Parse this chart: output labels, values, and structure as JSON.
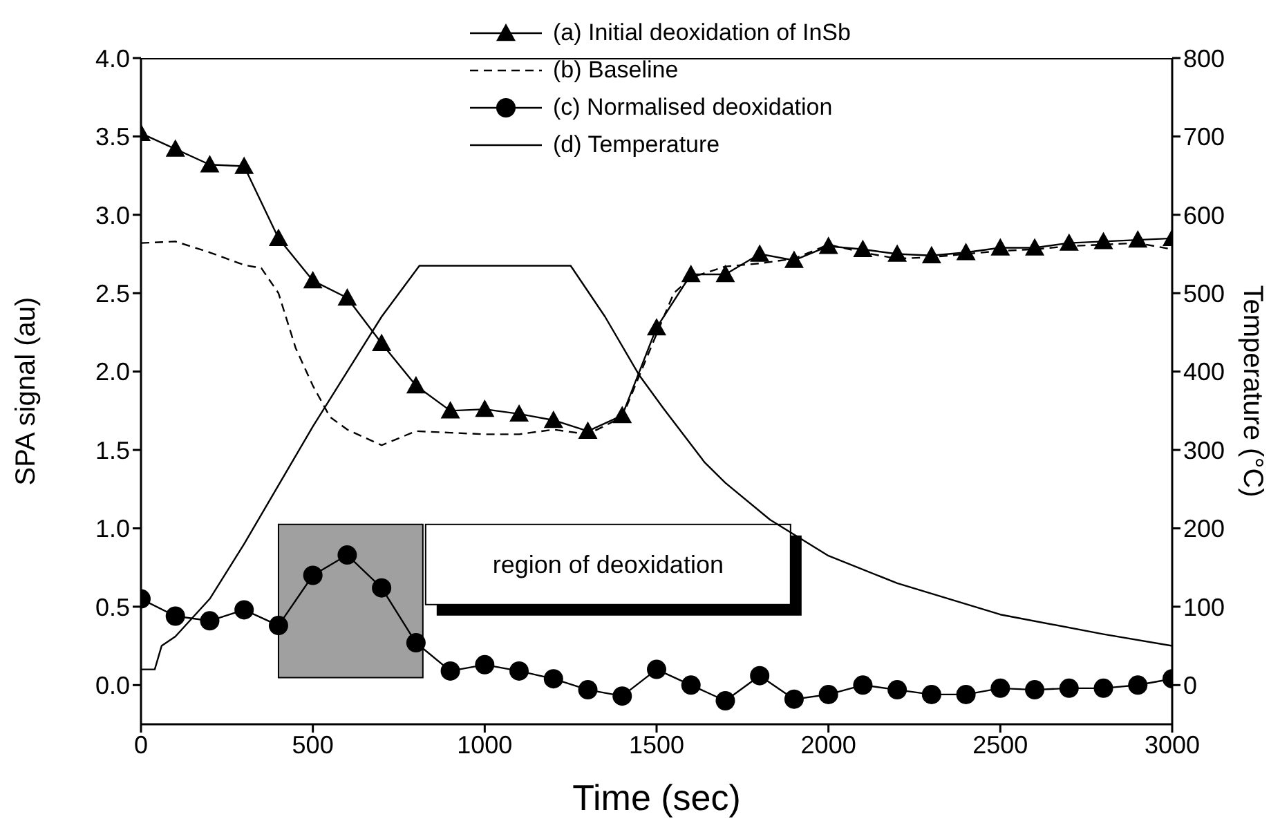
{
  "chart_data": {
    "type": "line",
    "xlabel": "Time (sec)",
    "ylabel": "SPA signal (au)",
    "y2label": "Temperature (°C)",
    "xlim": [
      0,
      3000
    ],
    "xticks": [
      0,
      500,
      1000,
      1500,
      2000,
      2500,
      3000
    ],
    "ylim": [
      -0.25,
      4.0
    ],
    "yticks": [
      {
        "value": 0,
        "label": "0.0"
      },
      {
        "value": 0.5,
        "label": "0.5"
      },
      {
        "value": 1,
        "label": "1.0"
      },
      {
        "value": 1.5,
        "label": "1.5"
      },
      {
        "value": 2,
        "label": "2.0"
      },
      {
        "value": 2.5,
        "label": "2.5"
      },
      {
        "value": 3,
        "label": "3.0"
      },
      {
        "value": 3.5,
        "label": "3.5"
      },
      {
        "value": 4,
        "label": "4.0"
      }
    ],
    "y2lim": [
      -50,
      800
    ],
    "y2ticks": [
      0,
      100,
      200,
      300,
      400,
      500,
      600,
      700,
      800
    ],
    "grid": false,
    "legend": "top",
    "bands": [
      {
        "axis": "x",
        "from": 400,
        "to": 820,
        "label": "region of deoxidation",
        "color": "#a0a0a0"
      }
    ],
    "series": [
      {
        "name": "(a) Initial deoxidation of InSb",
        "color": "#000000",
        "marker": "triangle",
        "line_style": "solid",
        "x": [
          0,
          100,
          200,
          300,
          400,
          500,
          600,
          700,
          800,
          900,
          1000,
          1100,
          1200,
          1300,
          1400,
          1500,
          1600,
          1700,
          1800,
          1900,
          2000,
          2100,
          2200,
          2300,
          2400,
          2500,
          2600,
          2700,
          2800,
          2900,
          3000
        ],
        "values": [
          3.52,
          3.42,
          3.32,
          3.31,
          2.85,
          2.58,
          2.47,
          2.18,
          1.91,
          1.75,
          1.76,
          1.73,
          1.69,
          1.62,
          1.72,
          2.28,
          2.62,
          2.62,
          2.75,
          2.71,
          2.8,
          2.78,
          2.75,
          2.74,
          2.76,
          2.79,
          2.79,
          2.82,
          2.83,
          2.84,
          2.85
        ]
      },
      {
        "name": "(b) Baseline",
        "color": "#000000",
        "marker": "none",
        "line_style": "dashed",
        "x": [
          0,
          100,
          200,
          300,
          350,
          400,
          450,
          500,
          550,
          600,
          700,
          800,
          900,
          1000,
          1100,
          1200,
          1300,
          1400,
          1500,
          1550,
          1600,
          1700,
          1800,
          1900,
          2000,
          2100,
          2200,
          2300,
          2400,
          2500,
          2600,
          2700,
          2800,
          2900,
          3000
        ],
        "values": [
          2.82,
          2.83,
          2.76,
          2.68,
          2.66,
          2.5,
          2.15,
          1.91,
          1.71,
          1.63,
          1.53,
          1.62,
          1.61,
          1.6,
          1.6,
          1.63,
          1.6,
          1.71,
          2.24,
          2.5,
          2.6,
          2.67,
          2.69,
          2.72,
          2.81,
          2.76,
          2.72,
          2.73,
          2.75,
          2.77,
          2.78,
          2.8,
          2.81,
          2.82,
          2.78
        ]
      },
      {
        "name": "(c) Normalised deoxidation",
        "color": "#000000",
        "marker": "circle",
        "line_style": "solid",
        "x": [
          0,
          100,
          200,
          300,
          400,
          500,
          600,
          700,
          800,
          900,
          1000,
          1100,
          1200,
          1300,
          1400,
          1500,
          1600,
          1700,
          1800,
          1900,
          2000,
          2100,
          2200,
          2300,
          2400,
          2500,
          2600,
          2700,
          2800,
          2900,
          3000
        ],
        "values": [
          0.55,
          0.44,
          0.41,
          0.48,
          0.38,
          0.7,
          0.83,
          0.62,
          0.27,
          0.09,
          0.13,
          0.09,
          0.04,
          -0.03,
          -0.07,
          0.1,
          0.0,
          -0.1,
          0.06,
          -0.09,
          -0.06,
          0.0,
          -0.03,
          -0.06,
          -0.06,
          -0.02,
          -0.03,
          -0.02,
          -0.02,
          0.0,
          0.04
        ]
      },
      {
        "name": "(d) Temperature",
        "color": "#000000",
        "marker": "none",
        "line_style": "solid",
        "axis": "y2",
        "x": [
          0,
          40,
          60,
          100,
          200,
          300,
          400,
          500,
          600,
          700,
          810,
          1000,
          1250,
          1350,
          1450,
          1520,
          1640,
          1700,
          1830,
          2000,
          2200,
          2500,
          2800,
          3000
        ],
        "values": [
          20,
          20,
          50,
          62,
          110,
          180,
          255,
          330,
          400,
          470,
          535,
          535,
          535,
          470,
          395,
          353,
          284,
          258,
          211,
          165,
          130,
          90,
          65,
          50
        ]
      }
    ]
  }
}
